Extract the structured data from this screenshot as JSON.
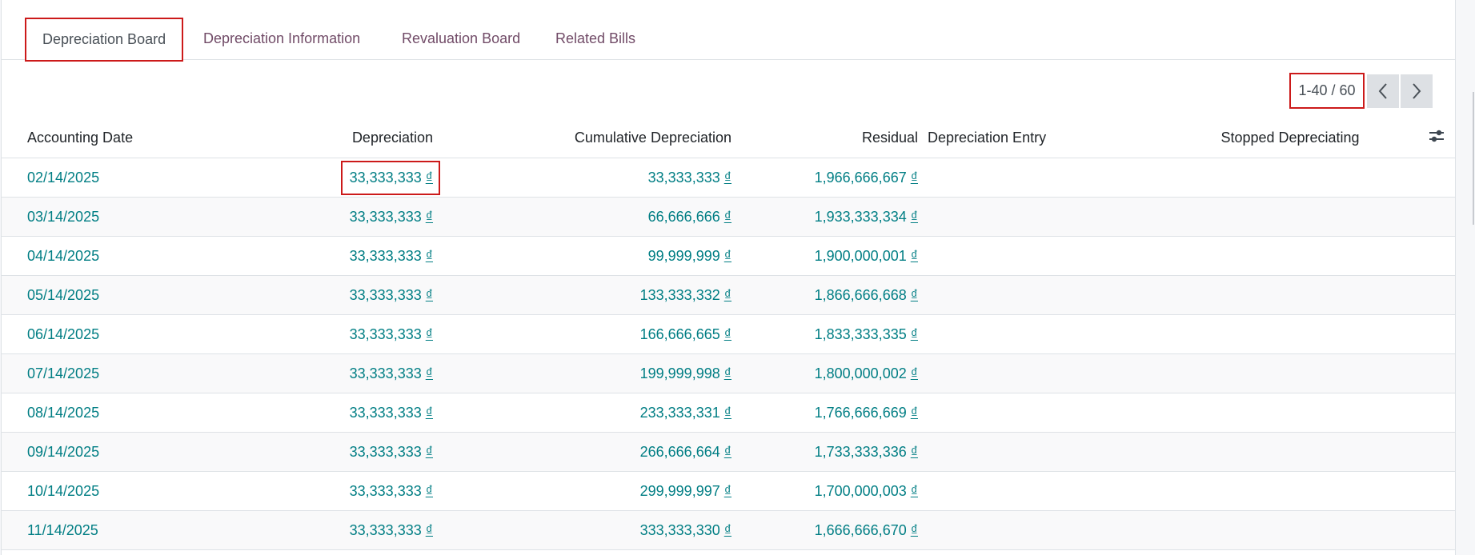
{
  "tabs": [
    {
      "label": "Depreciation Board",
      "active": true
    },
    {
      "label": "Depreciation Information",
      "active": false
    },
    {
      "label": "Revaluation Board",
      "active": false
    },
    {
      "label": "Related Bills",
      "active": false
    }
  ],
  "pager": {
    "value": "1-40 / 60",
    "prev_icon": "chevron-left-icon",
    "next_icon": "chevron-right-icon"
  },
  "table": {
    "columns": [
      "Accounting Date",
      "Depreciation",
      "Cumulative Depreciation",
      "Residual",
      "Depreciation Entry",
      "Stopped Depreciating"
    ],
    "settings_icon": "optional-columns-toggle-icon",
    "currency_symbol": "₫",
    "rows": [
      {
        "date": "02/14/2025",
        "depreciation": "33,333,333",
        "cumulative": "33,333,333",
        "residual": "1,966,666,667",
        "entry": "",
        "stopped": ""
      },
      {
        "date": "03/14/2025",
        "depreciation": "33,333,333",
        "cumulative": "66,666,666",
        "residual": "1,933,333,334",
        "entry": "",
        "stopped": ""
      },
      {
        "date": "04/14/2025",
        "depreciation": "33,333,333",
        "cumulative": "99,999,999",
        "residual": "1,900,000,001",
        "entry": "",
        "stopped": ""
      },
      {
        "date": "05/14/2025",
        "depreciation": "33,333,333",
        "cumulative": "133,333,332",
        "residual": "1,866,666,668",
        "entry": "",
        "stopped": ""
      },
      {
        "date": "06/14/2025",
        "depreciation": "33,333,333",
        "cumulative": "166,666,665",
        "residual": "1,833,333,335",
        "entry": "",
        "stopped": ""
      },
      {
        "date": "07/14/2025",
        "depreciation": "33,333,333",
        "cumulative": "199,999,998",
        "residual": "1,800,000,002",
        "entry": "",
        "stopped": ""
      },
      {
        "date": "08/14/2025",
        "depreciation": "33,333,333",
        "cumulative": "233,333,331",
        "residual": "1,766,666,669",
        "entry": "",
        "stopped": ""
      },
      {
        "date": "09/14/2025",
        "depreciation": "33,333,333",
        "cumulative": "266,666,664",
        "residual": "1,733,333,336",
        "entry": "",
        "stopped": ""
      },
      {
        "date": "10/14/2025",
        "depreciation": "33,333,333",
        "cumulative": "299,999,997",
        "residual": "1,700,000,003",
        "entry": "",
        "stopped": ""
      },
      {
        "date": "11/14/2025",
        "depreciation": "33,333,333",
        "cumulative": "333,333,330",
        "residual": "1,666,666,670",
        "entry": "",
        "stopped": ""
      }
    ]
  },
  "colors": {
    "link": "#017e84",
    "tab_inactive": "#714b67",
    "highlight_box": "#cc1a1a",
    "pager_button_bg": "#dde0e4"
  }
}
